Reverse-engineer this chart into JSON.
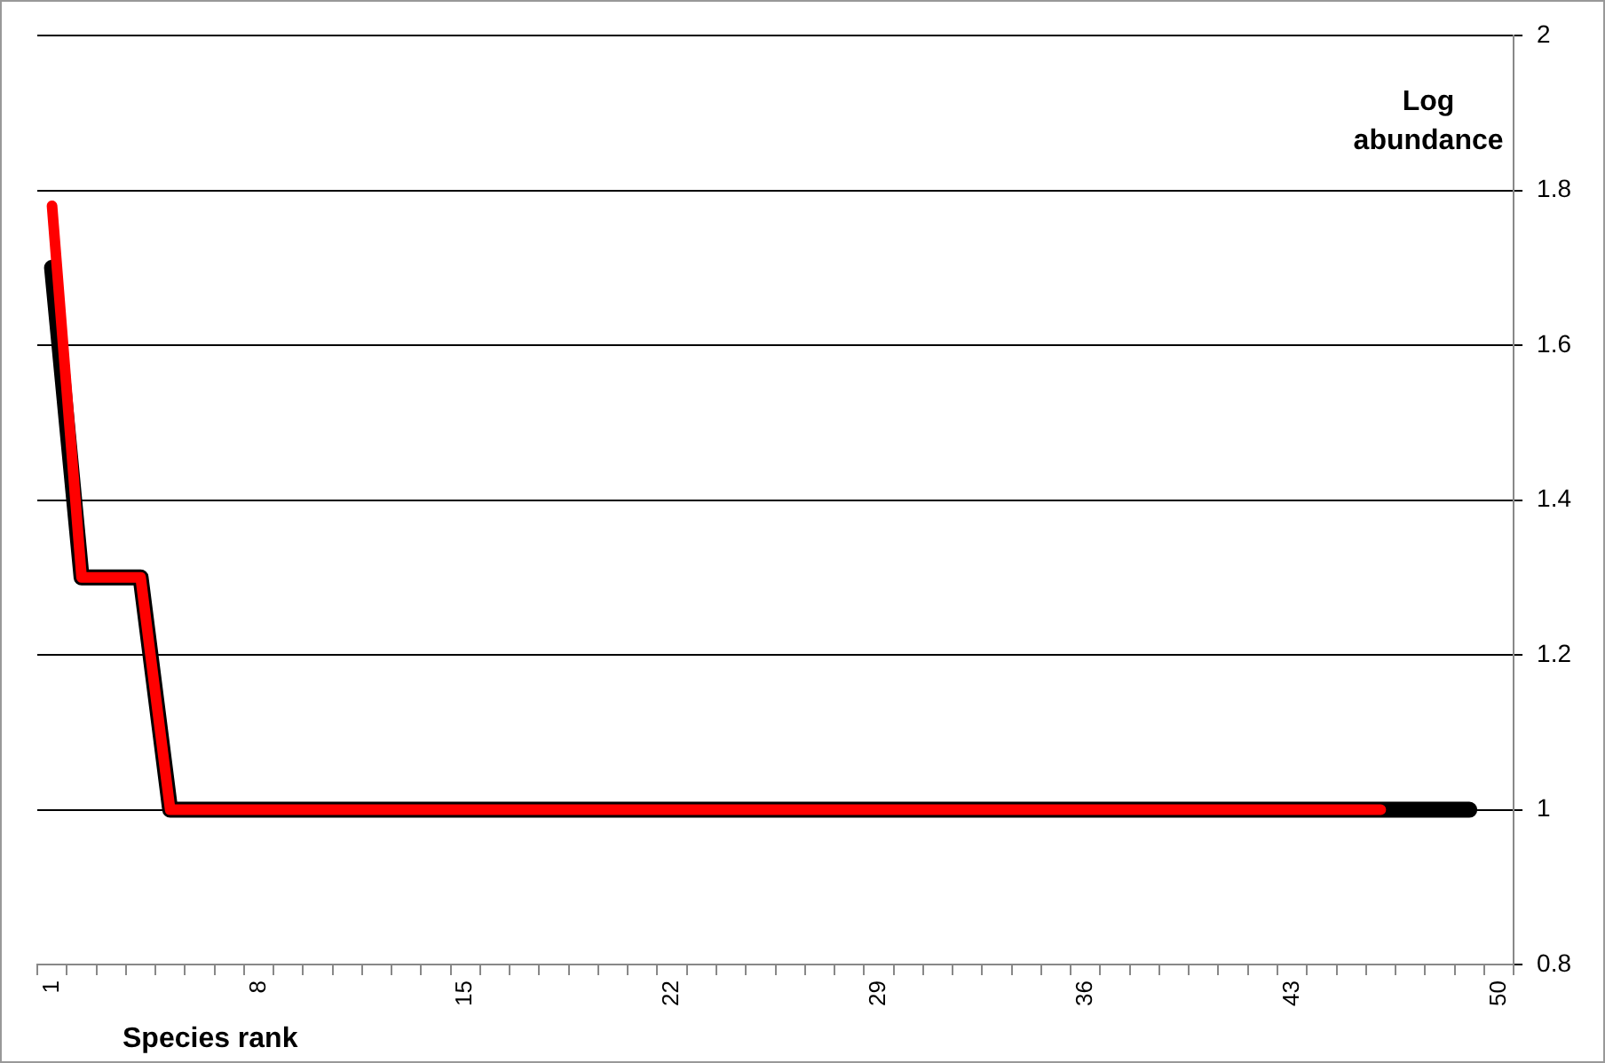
{
  "chart_data": {
    "type": "line",
    "xlabel": "Species rank",
    "ylabel": "Log abundance",
    "categories": [
      "1",
      null,
      null,
      null,
      null,
      null,
      null,
      "8",
      null,
      null,
      null,
      null,
      null,
      null,
      "15",
      null,
      null,
      null,
      null,
      null,
      null,
      "22",
      null,
      null,
      null,
      null,
      null,
      null,
      "29",
      null,
      null,
      null,
      null,
      null,
      null,
      "36",
      null,
      null,
      null,
      null,
      null,
      null,
      "43",
      null,
      null,
      null,
      null,
      null,
      null,
      "50"
    ],
    "series": [
      {
        "color": "#000000",
        "values": [
          1.7,
          1.3,
          1.3,
          1.3,
          1,
          1,
          1,
          1,
          1,
          1,
          1,
          1,
          1,
          1,
          1,
          1,
          1,
          1,
          1,
          1,
          1,
          1,
          1,
          1,
          1,
          1,
          1,
          1,
          1,
          1,
          1,
          1,
          1,
          1,
          1,
          1,
          1,
          1,
          1,
          1,
          1,
          1,
          1,
          1,
          1,
          1,
          1,
          1,
          1,
          null
        ]
      },
      {
        "color": "#ff0000",
        "values": [
          1.78,
          1.3,
          1.3,
          1.3,
          1,
          1,
          1,
          1,
          1,
          1,
          1,
          1,
          1,
          1,
          1,
          1,
          1,
          1,
          1,
          1,
          1,
          1,
          1,
          1,
          1,
          1,
          1,
          1,
          1,
          1,
          1,
          1,
          1,
          1,
          1,
          1,
          1,
          1,
          1,
          1,
          1,
          1,
          1,
          1,
          1,
          1,
          null,
          null,
          null,
          null
        ]
      }
    ],
    "ylim": [
      0.8,
      2
    ],
    "yticks": [
      0.8,
      1,
      1.2,
      1.4,
      1.6,
      1.8,
      2
    ],
    "grid": "y",
    "legend": false,
    "marker": "none",
    "line_style": "solid"
  }
}
